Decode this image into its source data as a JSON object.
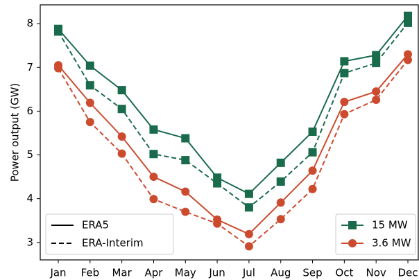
{
  "chart_data": {
    "type": "line",
    "y_label": "Power output (GW)",
    "categories": [
      "Jan",
      "Feb",
      "Mar",
      "Apr",
      "May",
      "Jun",
      "Jul",
      "Aug",
      "Sep",
      "Oct",
      "Nov",
      "Dec"
    ],
    "line_styles": [
      {
        "name": "ERA5",
        "dash": "solid"
      },
      {
        "name": "ERA-Interim",
        "dash": "dashed"
      }
    ],
    "line_styles_legend": "lower left",
    "series": [
      {
        "name": "15 MW",
        "color": "#1a6b4c",
        "marker": "square",
        "values": [
          [
            7.88,
            7.04,
            6.48,
            5.58,
            5.38,
            4.48,
            4.11,
            4.82,
            5.53,
            7.14,
            7.28,
            8.18
          ],
          [
            7.82,
            6.59,
            6.05,
            5.02,
            4.88,
            4.35,
            3.8,
            4.39,
            5.06,
            6.87,
            7.1,
            8.02
          ]
        ]
      },
      {
        "name": "3.6 MW",
        "color": "#cc4b2f",
        "marker": "circle",
        "values": [
          [
            7.05,
            6.19,
            5.42,
            4.5,
            4.16,
            3.52,
            3.19,
            3.91,
            4.64,
            6.21,
            6.45,
            7.3
          ],
          [
            6.98,
            5.75,
            5.03,
            3.99,
            3.7,
            3.43,
            2.91,
            3.53,
            4.22,
            5.93,
            6.26,
            7.17
          ]
        ]
      }
    ],
    "legend": "lower right",
    "ylim": [
      2.6,
      8.43
    ],
    "yticks": [
      3,
      4,
      5,
      6,
      7,
      8
    ],
    "grid": false
  }
}
